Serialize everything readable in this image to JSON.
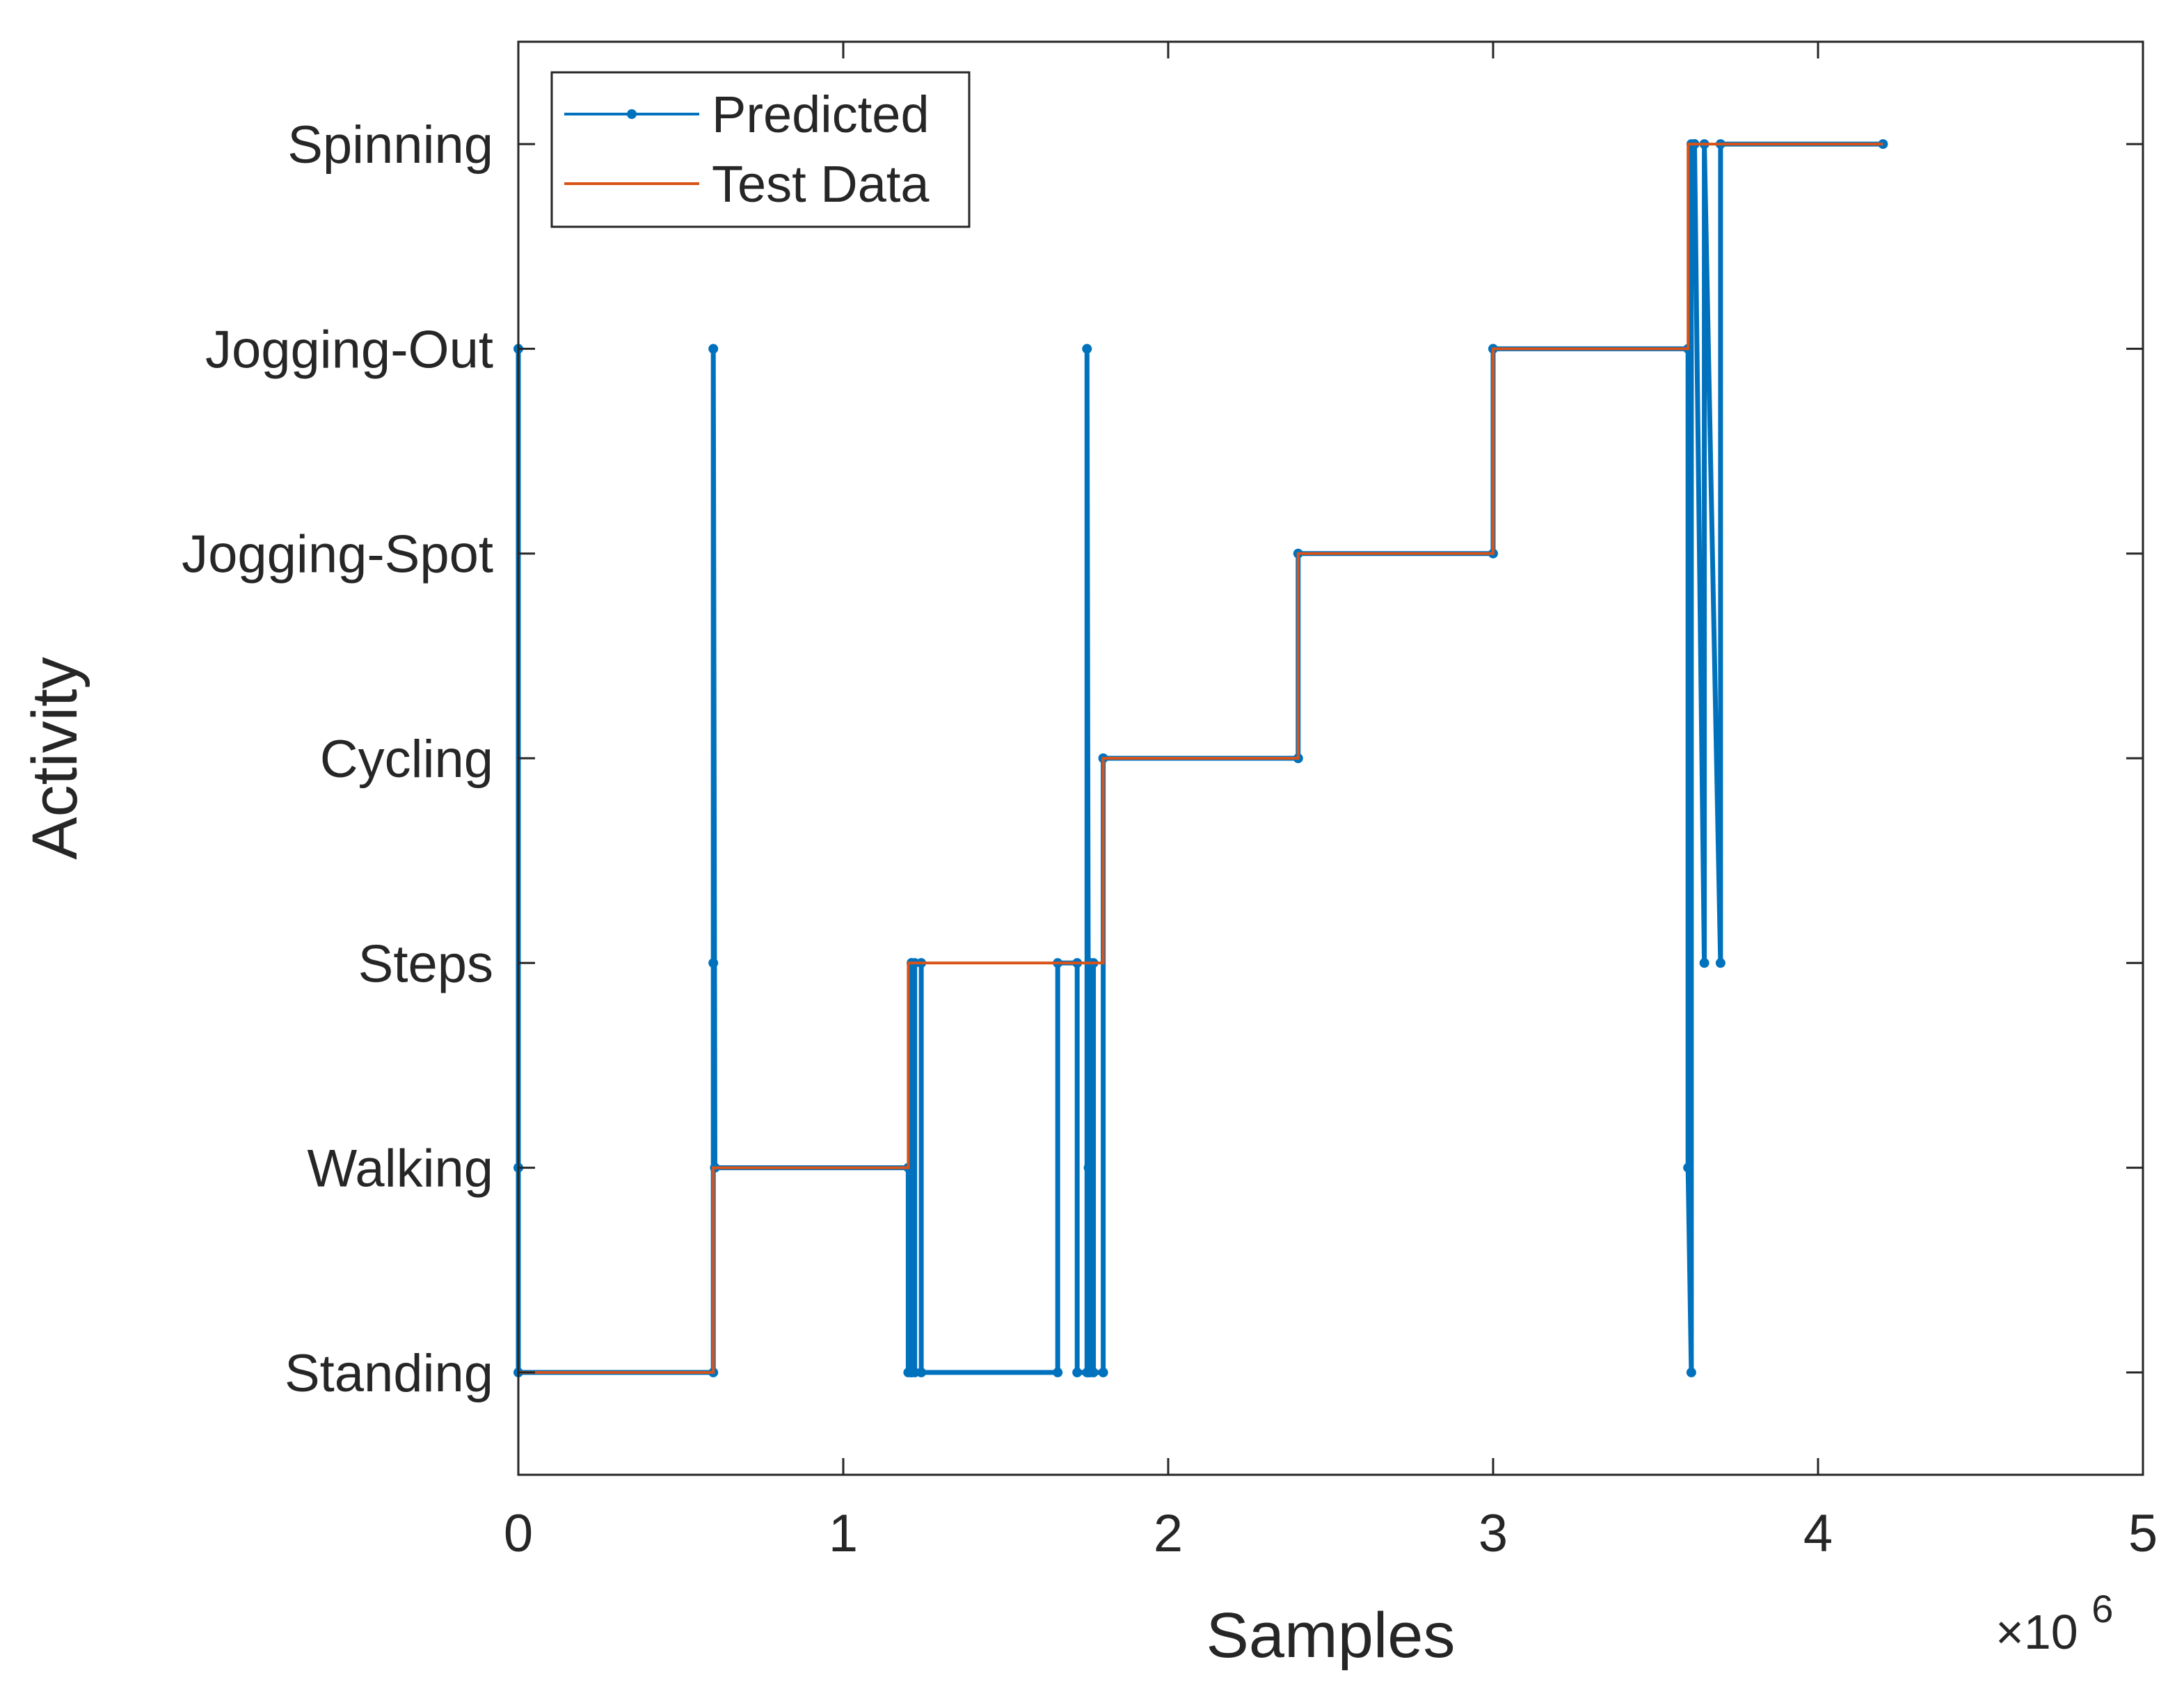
{
  "chart_data": {
    "type": "line",
    "title": "",
    "xlabel": "Samples",
    "ylabel": "Activity",
    "x_exponent_label": "×10",
    "x_exponent_power": "6",
    "x_multiplier": 1000000,
    "xlim": [
      0,
      5
    ],
    "ylim": [
      0.5,
      7.5
    ],
    "x_ticks": [
      0,
      1,
      2,
      3,
      4,
      5
    ],
    "x_tick_labels": [
      "0",
      "1",
      "2",
      "3",
      "4",
      "5"
    ],
    "y_ticks": [
      1,
      2,
      3,
      4,
      5,
      6,
      7
    ],
    "y_tick_labels": [
      "Standing",
      "Walking",
      "Steps",
      "Cycling",
      "Jogging-Spot",
      "Jogging-Out",
      "Spinning"
    ],
    "grid": false,
    "legend_location": "top-left",
    "series": [
      {
        "name": "Test Data",
        "color": "#D95319",
        "marker": "none",
        "x": [
          0,
          0.6,
          0.6,
          1.2,
          1.2,
          1.8,
          1.8,
          2.4,
          2.4,
          3.0,
          3.0,
          3.6,
          3.6,
          4.2
        ],
        "y": [
          1,
          1,
          2,
          2,
          3,
          3,
          4,
          4,
          5,
          5,
          6,
          6,
          7,
          7
        ]
      },
      {
        "name": "Predicted",
        "color": "#0072BD",
        "marker": "dot",
        "x": [
          0,
          0,
          0,
          0.6,
          0.6,
          0.6,
          0.605,
          0.605,
          1.2,
          1.2,
          1.21,
          1.21,
          1.22,
          1.22,
          1.21,
          1.21,
          1.24,
          1.24,
          1.66,
          1.66,
          1.72,
          1.72,
          1.75,
          1.75,
          1.755,
          1.755,
          1.76,
          1.76,
          1.77,
          1.77,
          1.8,
          1.8,
          2.4,
          2.4,
          3.0,
          3.0,
          3.6,
          3.6,
          3.61,
          3.61,
          3.62,
          3.62,
          3.65,
          3.65,
          3.7,
          3.7,
          4.2
        ],
        "y": [
          6,
          2,
          1,
          1,
          3,
          6,
          2,
          2,
          2,
          1,
          1,
          3,
          3,
          1,
          1,
          3,
          3,
          1,
          1,
          3,
          3,
          1,
          1,
          6,
          2,
          1,
          1,
          3,
          3,
          1,
          1,
          4,
          4,
          5,
          5,
          6,
          6,
          2,
          1,
          7,
          7,
          7,
          3,
          7,
          3,
          7,
          7
        ]
      }
    ]
  }
}
